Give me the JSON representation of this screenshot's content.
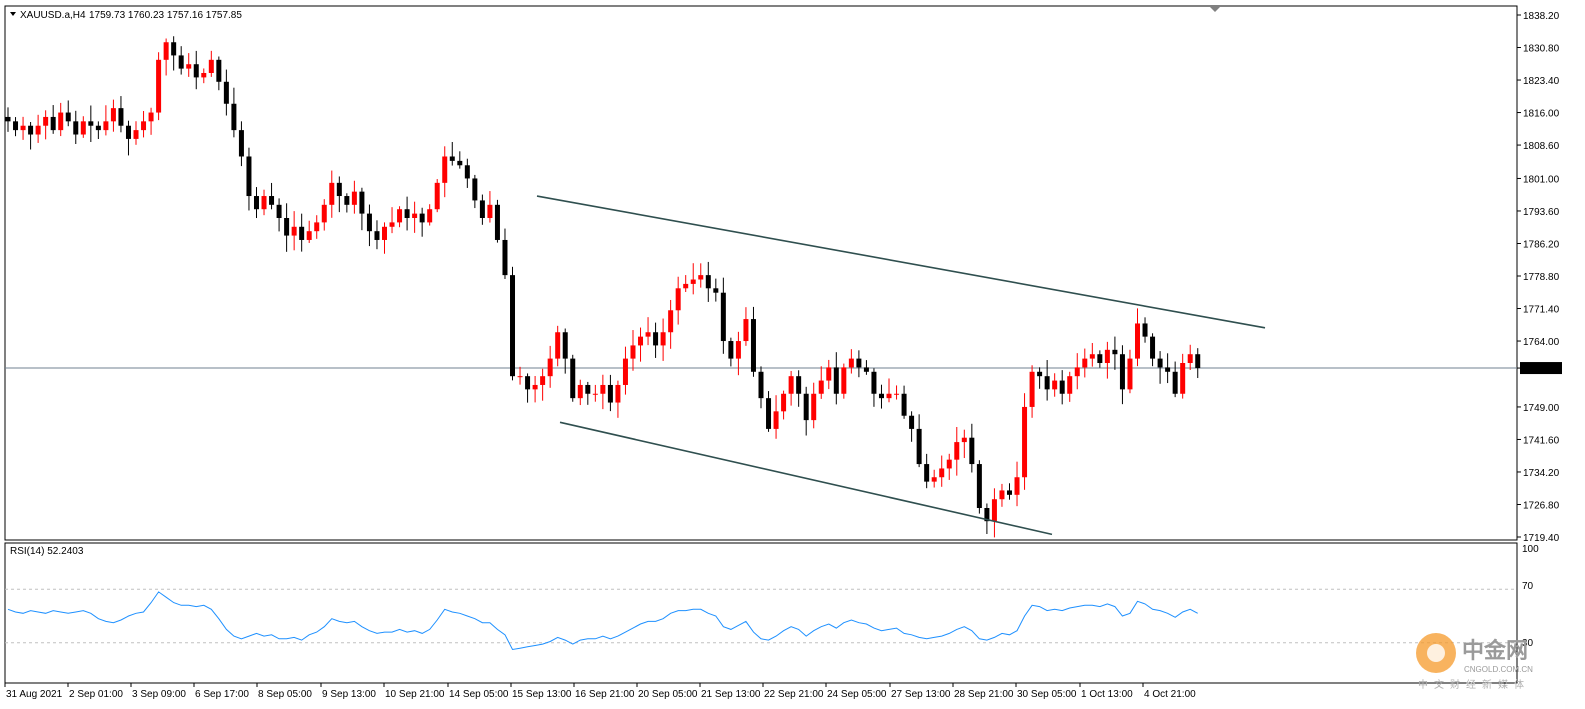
{
  "header": {
    "symbol": "XAUUSD.a,H4",
    "ohlc": "1759.73 1760.23 1757.16 1757.85"
  },
  "rsi_panel": {
    "label": "RSI(14) 52.2403",
    "levels": [
      "100",
      "70",
      "30"
    ]
  },
  "watermark": {
    "name_cn": "中金网",
    "domain": "CNGOLD.COM.CN",
    "tagline": "中文财经新媒体"
  },
  "colors": {
    "bull": "#ff0000",
    "bear": "#000000",
    "rsi_line": "#1e90ff",
    "channel": "#2f4f4f",
    "current_price_line": "#708090",
    "price_tag_bg": "#000000"
  },
  "chart_data": [
    {
      "type": "candlestick",
      "symbol": "XAUUSD.a",
      "timeframe": "H4",
      "current_price": 1757.85,
      "ylim": [
        1719.4,
        1838.2
      ],
      "yticks": [
        1838.2,
        1830.8,
        1823.4,
        1816.0,
        1808.6,
        1801.0,
        1793.6,
        1786.2,
        1778.8,
        1771.4,
        1764.0,
        1757.85,
        1749.0,
        1741.6,
        1734.2,
        1726.8,
        1719.4
      ],
      "ytick_labels": [
        "1838.20",
        "1830.80",
        "1823.40",
        "1816.00",
        "1808.60",
        "1801.00",
        "1793.60",
        "1786.20",
        "1778.80",
        "1771.40",
        "1764.00",
        "1757.85",
        "1749.00",
        "1741.60",
        "1734.20",
        "1726.80",
        "1719.40"
      ],
      "xtick_labels": [
        "31 Aug 2021",
        "2 Sep 01:00",
        "3 Sep 09:00",
        "6 Sep 17:00",
        "8 Sep 05:00",
        "9 Sep 13:00",
        "10 Sep 21:00",
        "14 Sep 05:00",
        "15 Sep 13:00",
        "16 Sep 21:00",
        "20 Sep 05:00",
        "21 Sep 13:00",
        "22 Sep 21:00",
        "24 Sep 05:00",
        "27 Sep 13:00",
        "28 Sep 21:00",
        "30 Sep 05:00",
        "1 Oct 13:00",
        "4 Oct 21:00"
      ],
      "closes": [
        1814,
        1812,
        1813,
        1811,
        1813,
        1815,
        1812,
        1816,
        1814,
        1811,
        1814,
        1813,
        1812,
        1814,
        1817,
        1813,
        1810,
        1812,
        1814,
        1816,
        1828,
        1832,
        1829,
        1826,
        1827,
        1824,
        1825,
        1828,
        1823,
        1818,
        1812,
        1806,
        1797,
        1794,
        1797,
        1795,
        1792,
        1788,
        1790,
        1787,
        1789,
        1791,
        1795,
        1800,
        1797,
        1795,
        1798,
        1793,
        1789,
        1787,
        1790,
        1791,
        1794,
        1792,
        1793,
        1791,
        1794,
        1800,
        1806,
        1805,
        1804,
        1801,
        1796,
        1792,
        1795,
        1787,
        1779,
        1756,
        1756,
        1753,
        1754,
        1756,
        1760,
        1766,
        1760,
        1751,
        1754,
        1752,
        1752,
        1754,
        1750,
        1754,
        1760,
        1763,
        1765,
        1766,
        1763,
        1766,
        1771,
        1776,
        1777,
        1778,
        1779,
        1776,
        1775,
        1764,
        1760,
        1764,
        1769,
        1757,
        1751,
        1744,
        1748,
        1752,
        1756,
        1752,
        1746,
        1752,
        1755,
        1758,
        1752,
        1758,
        1760,
        1758,
        1757,
        1752,
        1751,
        1752,
        1752,
        1747,
        1744,
        1736,
        1732,
        1733,
        1735,
        1737,
        1741,
        1742,
        1736,
        1726,
        1723,
        1728,
        1730,
        1729,
        1733,
        1749,
        1757,
        1756,
        1753,
        1755,
        1752,
        1756,
        1758,
        1760,
        1761,
        1759,
        1762,
        1761,
        1753,
        1760,
        1768,
        1765,
        1760,
        1758,
        1757,
        1752,
        1759,
        1761,
        1757.85
      ],
      "channel": {
        "upper_start": 1797.0,
        "upper_end": 1767.0,
        "lower_start": 1745.5,
        "lower_end": 1720.0
      }
    },
    {
      "type": "line",
      "name": "RSI(14)",
      "last_value": 52.2403,
      "ylim": [
        0,
        100
      ],
      "levels": [
        70,
        30
      ],
      "values": [
        55,
        53,
        52,
        54,
        53,
        52,
        54,
        53,
        52,
        53,
        54,
        52,
        48,
        46,
        45,
        47,
        50,
        52,
        53,
        60,
        68,
        64,
        60,
        58,
        58,
        57,
        58,
        55,
        48,
        40,
        35,
        33,
        35,
        37,
        35,
        36,
        33,
        33,
        34,
        32,
        36,
        38,
        42,
        48,
        46,
        45,
        46,
        42,
        39,
        37,
        38,
        38,
        40,
        38,
        39,
        37,
        40,
        47,
        55,
        53,
        52,
        50,
        48,
        45,
        45,
        40,
        36,
        25,
        26,
        27,
        28,
        29,
        31,
        34,
        32,
        29,
        32,
        33,
        33,
        35,
        33,
        35,
        38,
        41,
        44,
        46,
        46,
        48,
        52,
        54,
        54,
        55,
        55,
        52,
        50,
        42,
        40,
        43,
        46,
        38,
        33,
        32,
        35,
        39,
        42,
        40,
        35,
        39,
        42,
        44,
        41,
        45,
        47,
        45,
        44,
        41,
        39,
        40,
        41,
        37,
        36,
        34,
        33,
        34,
        35,
        37,
        40,
        42,
        39,
        33,
        32,
        34,
        37,
        36,
        39,
        50,
        58,
        57,
        54,
        55,
        54,
        56,
        57,
        58,
        58,
        57,
        59,
        57,
        50,
        52,
        61,
        59,
        55,
        54,
        52,
        49,
        53,
        55,
        52
      ]
    }
  ]
}
